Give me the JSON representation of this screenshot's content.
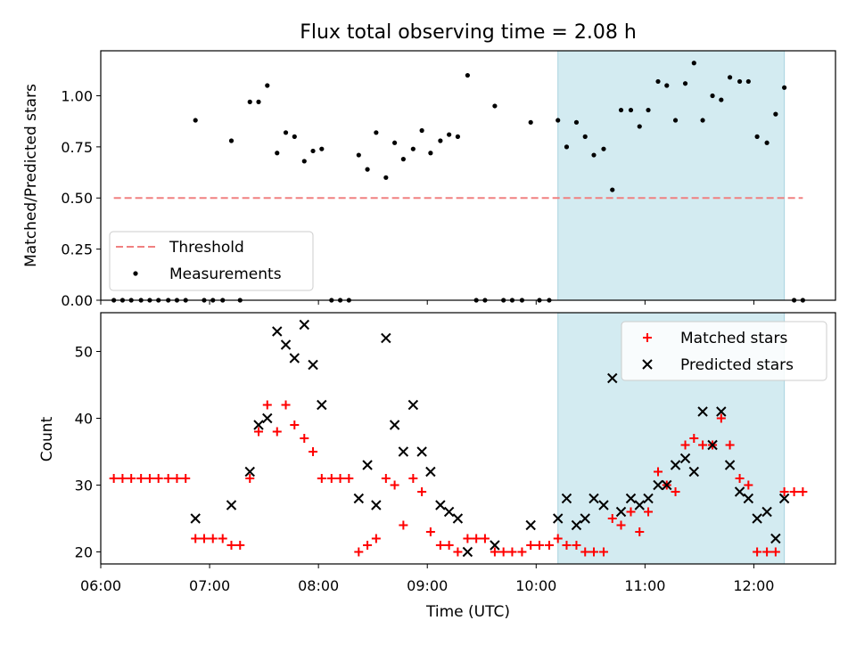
{
  "chart_data": {
    "title": "Flux total observing time = 2.08 h",
    "xlabel": "Time (UTC)",
    "xlim": [
      6.0,
      12.75
    ],
    "xticks": [
      {
        "v": 6,
        "label": "06:00"
      },
      {
        "v": 7,
        "label": "07:00"
      },
      {
        "v": 8,
        "label": "08:00"
      },
      {
        "v": 9,
        "label": "09:00"
      },
      {
        "v": 10,
        "label": "10:00"
      },
      {
        "v": 11,
        "label": "11:00"
      },
      {
        "v": 12,
        "label": "12:00"
      }
    ],
    "highlight": {
      "x0": 10.2,
      "x1": 12.28,
      "color": "#d3ebf1"
    },
    "ratio_panel": {
      "type": "scatter",
      "ylabel": "Matched/Predicted stars",
      "ylim": [
        0.0,
        1.22
      ],
      "yticks": [
        {
          "v": 0.0,
          "label": "0.00"
        },
        {
          "v": 0.25,
          "label": "0.25"
        },
        {
          "v": 0.5,
          "label": "0.50"
        },
        {
          "v": 0.75,
          "label": "0.75"
        },
        {
          "v": 1.0,
          "label": "1.00"
        }
      ],
      "threshold": {
        "name": "Threshold",
        "value": 0.5,
        "x0": 6.12,
        "x1": 12.45,
        "color": "#f08080"
      },
      "measurements": {
        "name": "Measurements",
        "color": "#000000",
        "x": [
          6.12,
          6.2,
          6.28,
          6.37,
          6.45,
          6.53,
          6.62,
          6.7,
          6.78,
          6.87,
          6.95,
          7.03,
          7.12,
          7.2,
          7.28,
          7.37,
          7.45,
          7.53,
          7.62,
          7.7,
          7.78,
          7.87,
          7.95,
          8.03,
          8.12,
          8.2,
          8.28,
          8.37,
          8.45,
          8.53,
          8.62,
          8.7,
          8.78,
          8.87,
          8.95,
          9.03,
          9.12,
          9.2,
          9.28,
          9.37,
          9.45,
          9.53,
          9.62,
          9.7,
          9.78,
          9.87,
          9.95,
          10.03,
          10.12,
          10.2,
          10.28,
          10.37,
          10.45,
          10.53,
          10.62,
          10.7,
          10.78,
          10.87,
          10.95,
          11.03,
          11.12,
          11.2,
          11.28,
          11.37,
          11.45,
          11.53,
          11.62,
          11.7,
          11.78,
          11.87,
          11.95,
          12.03,
          12.12,
          12.2,
          12.28,
          12.37,
          12.45
        ],
        "y": [
          0,
          0,
          0,
          0,
          0,
          0,
          0,
          0,
          0,
          0.88,
          0,
          0,
          0,
          0.78,
          0,
          0.97,
          0.97,
          1.05,
          0.72,
          0.82,
          0.8,
          0.68,
          0.73,
          0.74,
          0,
          0,
          0,
          0.71,
          0.64,
          0.82,
          0.6,
          0.77,
          0.69,
          0.74,
          0.83,
          0.72,
          0.78,
          0.81,
          0.8,
          1.1,
          0,
          0,
          0.95,
          0,
          0,
          0,
          0.87,
          0,
          0,
          0.88,
          0.75,
          0.87,
          0.8,
          0.71,
          0.74,
          0.54,
          0.93,
          0.93,
          0.85,
          0.93,
          1.07,
          1.05,
          0.88,
          1.06,
          1.16,
          0.88,
          1.0,
          0.98,
          1.09,
          1.07,
          1.07,
          0.8,
          0.77,
          0.91,
          1.04,
          0,
          0
        ]
      },
      "legend_position": "lower-left"
    },
    "count_panel": {
      "type": "scatter",
      "ylabel": "Count",
      "ylim": [
        18.2,
        55.8
      ],
      "yticks": [
        {
          "v": 20,
          "label": "20"
        },
        {
          "v": 30,
          "label": "30"
        },
        {
          "v": 40,
          "label": "40"
        },
        {
          "v": 50,
          "label": "50"
        }
      ],
      "series": [
        {
          "name": "Matched stars",
          "marker": "plus",
          "color": "#ff0000",
          "x": [
            6.12,
            6.2,
            6.28,
            6.37,
            6.45,
            6.53,
            6.62,
            6.7,
            6.78,
            6.87,
            6.95,
            7.03,
            7.12,
            7.2,
            7.28,
            7.37,
            7.45,
            7.53,
            7.62,
            7.7,
            7.78,
            7.87,
            7.95,
            8.03,
            8.12,
            8.2,
            8.28,
            8.37,
            8.45,
            8.53,
            8.62,
            8.7,
            8.78,
            8.87,
            8.95,
            9.03,
            9.12,
            9.2,
            9.28,
            9.37,
            9.45,
            9.53,
            9.62,
            9.7,
            9.78,
            9.87,
            9.95,
            10.03,
            10.12,
            10.2,
            10.28,
            10.37,
            10.45,
            10.53,
            10.62,
            10.7,
            10.78,
            10.87,
            10.95,
            11.03,
            11.12,
            11.2,
            11.28,
            11.37,
            11.45,
            11.53,
            11.62,
            11.7,
            11.78,
            11.87,
            11.95,
            12.03,
            12.12,
            12.2,
            12.28,
            12.37,
            12.45
          ],
          "y": [
            31,
            31,
            31,
            31,
            31,
            31,
            31,
            31,
            31,
            22,
            22,
            22,
            22,
            21,
            21,
            31,
            38,
            42,
            38,
            42,
            39,
            37,
            35,
            31,
            31,
            31,
            31,
            20,
            21,
            22,
            31,
            30,
            24,
            31,
            29,
            23,
            21,
            21,
            20,
            22,
            22,
            22,
            20,
            20,
            20,
            20,
            21,
            21,
            21,
            22,
            21,
            21,
            20,
            20,
            20,
            25,
            24,
            26,
            23,
            26,
            32,
            30,
            29,
            36,
            37,
            36,
            36,
            40,
            36,
            31,
            30,
            20,
            20,
            20,
            29,
            29,
            29
          ]
        },
        {
          "name": "Predicted stars",
          "marker": "x",
          "color": "#000000",
          "x": [
            6.87,
            7.2,
            7.37,
            7.45,
            7.53,
            7.62,
            7.7,
            7.78,
            7.87,
            7.95,
            8.03,
            8.37,
            8.45,
            8.53,
            8.62,
            8.7,
            8.78,
            8.87,
            8.95,
            9.03,
            9.12,
            9.2,
            9.28,
            9.37,
            9.62,
            9.95,
            10.2,
            10.28,
            10.37,
            10.45,
            10.53,
            10.62,
            10.7,
            10.78,
            10.87,
            10.95,
            11.03,
            11.12,
            11.2,
            11.28,
            11.37,
            11.45,
            11.53,
            11.62,
            11.7,
            11.78,
            11.87,
            11.95,
            12.03,
            12.12,
            12.2,
            12.28
          ],
          "y": [
            25,
            27,
            32,
            39,
            40,
            53,
            51,
            49,
            54,
            48,
            42,
            28,
            33,
            27,
            52,
            39,
            35,
            42,
            35,
            32,
            27,
            26,
            25,
            20,
            21,
            24,
            25,
            28,
            24,
            25,
            28,
            27,
            46,
            26,
            28,
            27,
            28,
            30,
            30,
            33,
            34,
            32,
            41,
            36,
            41,
            33,
            29,
            28,
            25,
            26,
            22,
            28
          ]
        }
      ],
      "legend_position": "upper-right"
    }
  }
}
